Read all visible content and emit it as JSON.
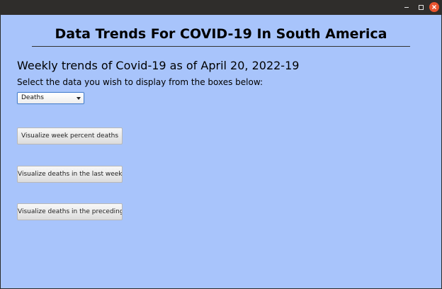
{
  "window": {
    "controls": {
      "minimize": "minimize-icon",
      "maximize": "maximize-icon",
      "close": "close-icon"
    },
    "close_color": "#e9542f"
  },
  "main": {
    "title": "Data Trends For COVID-19 In South America",
    "subtitle": "Weekly trends of Covid-19 as of April 20, 2022-19",
    "instruction": "Select the data you wish to display from the boxes below:",
    "select": {
      "value": "Deaths"
    },
    "buttons": [
      {
        "label": "Visualize week percent deaths"
      },
      {
        "label": "Visualize deaths in the last week"
      },
      {
        "label": "Visualize deaths in the preceding..."
      }
    ],
    "background_color": "#a8c4fb"
  }
}
